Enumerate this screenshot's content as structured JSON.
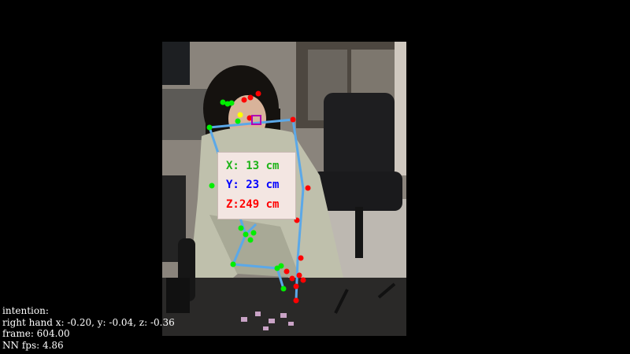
{
  "coordinates": {
    "x_label": "X: 13 cm",
    "y_label": "Y: 23 cm",
    "z_label": "Z:249 cm",
    "x_color": "#1db318",
    "y_color": "#0000ff",
    "z_color": "#ff0000"
  },
  "hud": {
    "intention_label": "intention:",
    "right_hand": "right hand x: -0.20, y: -0.04, z: -0.36",
    "frame": "frame: 604.00",
    "fps": "NN fps: 4.86"
  },
  "skeleton": {
    "bone_color": "#5ba8e8",
    "left_keypoint_color": "#00ee00",
    "right_keypoint_color": "#ff0000",
    "center_keypoint_color": "#ffff00",
    "face_marker_color": "#b300b3"
  }
}
